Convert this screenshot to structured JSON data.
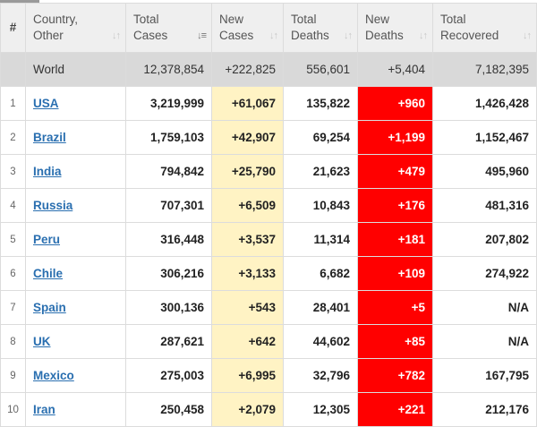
{
  "columns": [
    {
      "label": "#"
    },
    {
      "label": "Country,\nOther"
    },
    {
      "label": "Total\nCases"
    },
    {
      "label": "New\nCases"
    },
    {
      "label": "Total\nDeaths"
    },
    {
      "label": "New\nDeaths"
    },
    {
      "label": "Total\nRecovered"
    }
  ],
  "world": {
    "country": "World",
    "total_cases": "12,378,854",
    "new_cases": "+222,825",
    "total_deaths": "556,601",
    "new_deaths": "+5,404",
    "total_recovered": "7,182,395"
  },
  "rows": [
    {
      "rank": "1",
      "country": "USA",
      "total_cases": "3,219,999",
      "new_cases": "+61,067",
      "total_deaths": "135,822",
      "new_deaths": "+960",
      "total_recovered": "1,426,428"
    },
    {
      "rank": "2",
      "country": "Brazil",
      "total_cases": "1,759,103",
      "new_cases": "+42,907",
      "total_deaths": "69,254",
      "new_deaths": "+1,199",
      "total_recovered": "1,152,467"
    },
    {
      "rank": "3",
      "country": "India",
      "total_cases": "794,842",
      "new_cases": "+25,790",
      "total_deaths": "21,623",
      "new_deaths": "+479",
      "total_recovered": "495,960"
    },
    {
      "rank": "4",
      "country": "Russia",
      "total_cases": "707,301",
      "new_cases": "+6,509",
      "total_deaths": "10,843",
      "new_deaths": "+176",
      "total_recovered": "481,316"
    },
    {
      "rank": "5",
      "country": "Peru",
      "total_cases": "316,448",
      "new_cases": "+3,537",
      "total_deaths": "11,314",
      "new_deaths": "+181",
      "total_recovered": "207,802"
    },
    {
      "rank": "6",
      "country": "Chile",
      "total_cases": "306,216",
      "new_cases": "+3,133",
      "total_deaths": "6,682",
      "new_deaths": "+109",
      "total_recovered": "274,922"
    },
    {
      "rank": "7",
      "country": "Spain",
      "total_cases": "300,136",
      "new_cases": "+543",
      "total_deaths": "28,401",
      "new_deaths": "+5",
      "total_recovered": "N/A"
    },
    {
      "rank": "8",
      "country": "UK",
      "total_cases": "287,621",
      "new_cases": "+642",
      "total_deaths": "44,602",
      "new_deaths": "+85",
      "total_recovered": "N/A"
    },
    {
      "rank": "9",
      "country": "Mexico",
      "total_cases": "275,003",
      "new_cases": "+6,995",
      "total_deaths": "32,796",
      "new_deaths": "+782",
      "total_recovered": "167,795"
    },
    {
      "rank": "10",
      "country": "Iran",
      "total_cases": "250,458",
      "new_cases": "+2,079",
      "total_deaths": "12,305",
      "new_deaths": "+221",
      "total_recovered": "212,176"
    }
  ],
  "colors": {
    "new_cases_bg": "#fff3c4",
    "new_deaths_bg": "#ff0000",
    "world_row_bg": "#d9d9d9",
    "link": "#2a6fb0"
  },
  "sort": {
    "active_column": "total_cases",
    "direction": "descending"
  }
}
